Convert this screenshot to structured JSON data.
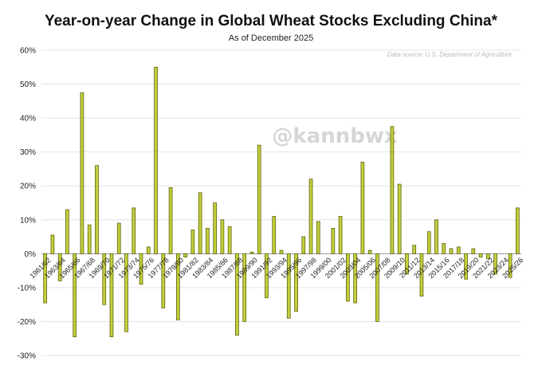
{
  "chart_data": {
    "type": "bar",
    "title": "Year-on-year Change in Global Wheat Stocks Excluding China*",
    "subtitle": "As of December 2025",
    "source": "Data source: U.S. Department of Agriculture",
    "watermark": "@kannbwx",
    "xlabel": "",
    "ylabel": "",
    "ylim": [
      -30,
      60
    ],
    "yticks": [
      60,
      50,
      40,
      30,
      20,
      10,
      0,
      -10,
      -20,
      -30
    ],
    "ytick_labels": [
      "60%",
      "50%",
      "40%",
      "30%",
      "20%",
      "10%",
      "0%",
      "-10%",
      "-20%",
      "-30%"
    ],
    "grid": true,
    "bar_color": "#c4cf3a",
    "bar_edge_color": "#5c6310",
    "categories": [
      "1961/62",
      "1962/63",
      "1963/64",
      "1964/65",
      "1965/66",
      "1966/67",
      "1967/68",
      "1968/69",
      "1969/70",
      "1970/71",
      "1971/72",
      "1972/73",
      "1973/74",
      "1974/75",
      "1975/76",
      "1976/77",
      "1977/78",
      "1978/79",
      "1979/80",
      "1980/81",
      "1981/82",
      "1982/83",
      "1983/84",
      "1984/85",
      "1985/86",
      "1986/87",
      "1987/88",
      "1988/89",
      "1989/90",
      "1990/91",
      "1991/92",
      "1992/93",
      "1993/94",
      "1994/95",
      "1995/96",
      "1996/97",
      "1997/98",
      "1998/99",
      "1999/00",
      "2000/01",
      "2001/02",
      "2002/03",
      "2003/04",
      "2004/05",
      "2005/06",
      "2006/07",
      "2007/08",
      "2008/09",
      "2009/10",
      "2010/11",
      "2011/12",
      "2012/13",
      "2013/14",
      "2014/15",
      "2015/16",
      "2016/17",
      "2017/18",
      "2018/19",
      "2019/20",
      "2020/21",
      "2021/22",
      "2022/23",
      "2023/24",
      "2024/25",
      "2025/26"
    ],
    "values": [
      -14.5,
      5.5,
      -8,
      13,
      -24.5,
      47.5,
      8.5,
      26,
      -15,
      -24.5,
      9,
      -23,
      13.5,
      -9,
      2,
      55,
      -16,
      19.5,
      -19.5,
      -1,
      7,
      18,
      7.5,
      15,
      10,
      8,
      -24,
      -20,
      0.5,
      32,
      -13,
      11,
      1,
      -19,
      -17,
      5,
      22,
      9.5,
      0,
      7.5,
      11,
      -14,
      -14.5,
      27,
      1,
      -20,
      0,
      37.5,
      20.5,
      -6,
      2.5,
      -12.5,
      6.5,
      10,
      3,
      1.5,
      2,
      -7.5,
      1.5,
      -1,
      -1.5,
      -6,
      0,
      -7,
      13.5
    ],
    "xtick_labels": [
      "1961/62",
      "1963/64",
      "1965/66",
      "1967/68",
      "1969/70",
      "1971/72",
      "1973/74",
      "1975/76",
      "1977/78",
      "1979/80",
      "1981/82",
      "1983/84",
      "1985/86",
      "1987/88",
      "1989/90",
      "1991/92",
      "1993/94",
      "1995/96",
      "1997/98",
      "1999/00",
      "2001/02",
      "2003/04",
      "2005/06",
      "2007/08",
      "2009/10",
      "2011/12",
      "2013/14",
      "2015/16",
      "2017/18",
      "2019/20",
      "2021/22",
      "2023/24",
      "2025/26"
    ]
  }
}
